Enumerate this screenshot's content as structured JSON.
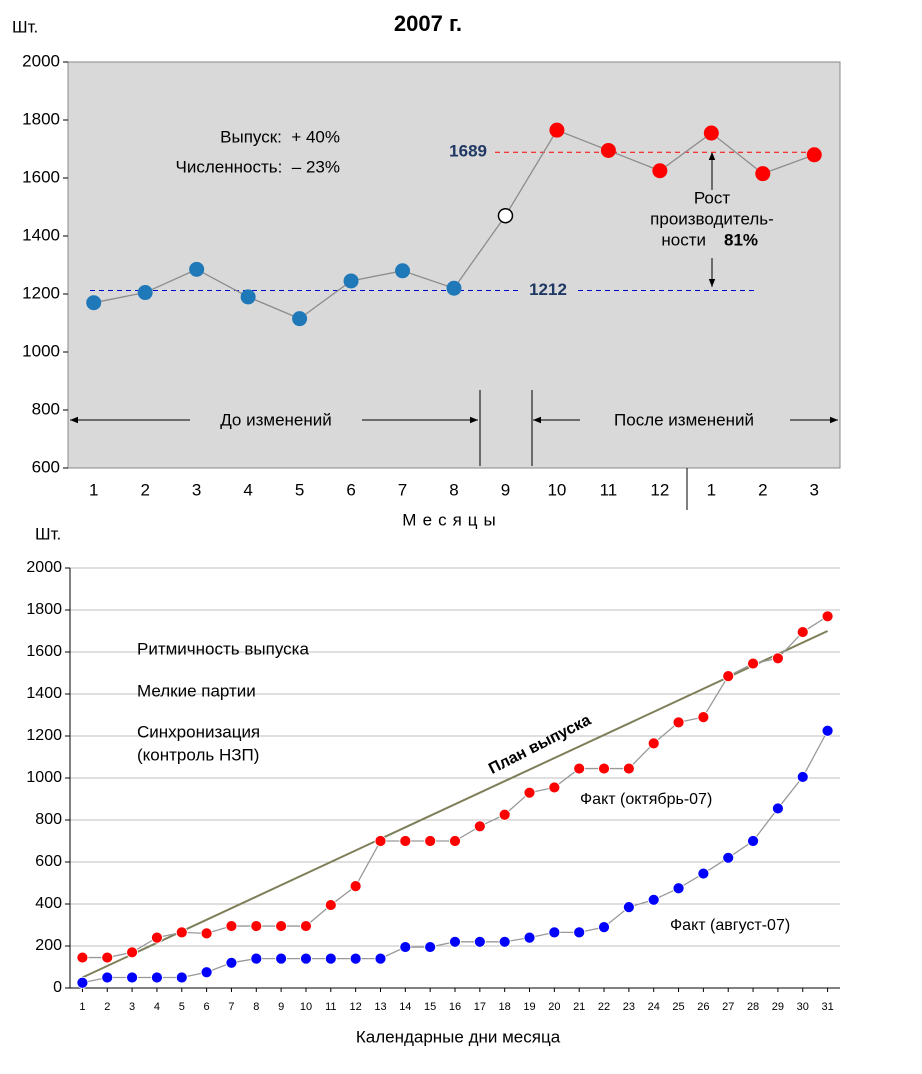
{
  "chart_data": [
    {
      "type": "line",
      "title": "2007 г.",
      "y_unit": "Шт.",
      "x_label": "Месяцы",
      "categories": [
        "1",
        "2",
        "3",
        "4",
        "5",
        "6",
        "7",
        "8",
        "9",
        "10",
        "11",
        "12",
        "1",
        "2",
        "3"
      ],
      "series": [
        {
          "color": "#8c8c8c",
          "values": [
            1170,
            1205,
            1285,
            1190,
            1115,
            1245,
            1280,
            1220,
            1470,
            1765,
            1695,
            1625,
            1755,
            1615,
            1680
          ],
          "marker_colors": [
            "#1f78b8",
            "#1f78b8",
            "#1f78b8",
            "#1f78b8",
            "#1f78b8",
            "#1f78b8",
            "#1f78b8",
            "#1f78b8",
            "#ffffff",
            "#ff0000",
            "#ff0000",
            "#ff0000",
            "#ff0000",
            "#ff0000",
            "#ff0000"
          ]
        }
      ],
      "reference_lines": [
        {
          "value": 1689,
          "color": "#ff0000"
        },
        {
          "value": 1212,
          "color": "#0000cc"
        }
      ],
      "annotations": [
        "Выпуск:  + 40%",
        "Численность:  – 23%"
      ],
      "periods": [
        "До изменений",
        "После изменений"
      ],
      "growth_text": [
        "Рост",
        "производитель-",
        "ности"
      ],
      "growth_value": "81%",
      "ylim": [
        600,
        2000
      ],
      "yticks": [
        600,
        800,
        1000,
        1200,
        1400,
        1600,
        1800,
        2000
      ],
      "background": "#d9d9d9",
      "grid": false
    },
    {
      "type": "line",
      "y_unit": "Шт.",
      "x_label": "Календарные дни месяца",
      "x": [
        1,
        2,
        3,
        4,
        5,
        6,
        7,
        8,
        9,
        10,
        11,
        12,
        13,
        14,
        15,
        16,
        17,
        18,
        19,
        20,
        21,
        22,
        23,
        24,
        25,
        26,
        27,
        28,
        29,
        30,
        31
      ],
      "series": [
        {
          "name": "План выпуска",
          "color": "#7f7f5a",
          "x": [
            1,
            31
          ],
          "values": [
            50,
            1700
          ],
          "markers": false
        },
        {
          "name": "Факт (октябрь-07)",
          "color": "#ff0000",
          "line_color": "#999999",
          "values": [
            145,
            145,
            170,
            240,
            265,
            260,
            295,
            295,
            295,
            295,
            395,
            485,
            700,
            700,
            700,
            700,
            770,
            825,
            930,
            955,
            1045,
            1045,
            1045,
            1165,
            1265,
            1290,
            1485,
            1545,
            1570,
            1695,
            1770
          ]
        },
        {
          "name": "Факт (август-07)",
          "color": "#0000ff",
          "line_color": "#999999",
          "values": [
            25,
            50,
            50,
            50,
            50,
            75,
            120,
            140,
            140,
            140,
            140,
            140,
            140,
            195,
            195,
            220,
            220,
            220,
            240,
            265,
            265,
            290,
            385,
            420,
            475,
            545,
            620,
            700,
            855,
            1005,
            1225
          ]
        }
      ],
      "annotations": [
        "Ритмичность выпуска",
        "Мелкие партии",
        "Синхронизация",
        "(контроль НЗП)"
      ],
      "xlim": [
        0.5,
        31.5
      ],
      "xticks": [
        1,
        2,
        3,
        4,
        5,
        6,
        7,
        8,
        9,
        10,
        11,
        12,
        13,
        14,
        15,
        16,
        17,
        18,
        19,
        20,
        21,
        22,
        23,
        24,
        25,
        26,
        27,
        28,
        29,
        30,
        31
      ],
      "ylim": [
        0,
        2000
      ],
      "yticks": [
        0,
        200,
        400,
        600,
        800,
        1000,
        1200,
        1400,
        1600,
        1800,
        2000
      ],
      "background": "#ffffff",
      "grid": true
    }
  ]
}
